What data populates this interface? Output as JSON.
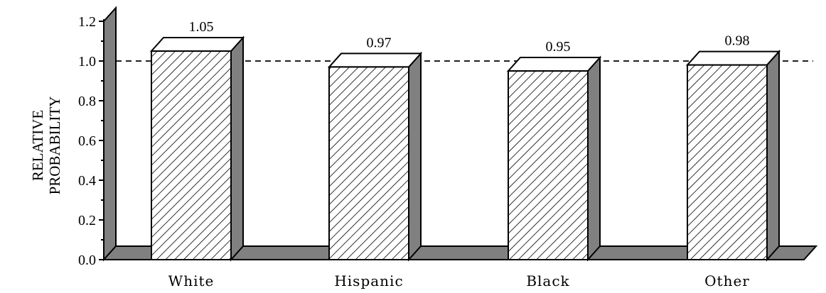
{
  "chart_data": {
    "type": "bar",
    "title": "",
    "xlabel": "",
    "ylabel": "RELATIVE PROBABILITY",
    "ylabel_lines": [
      "RELATIVE",
      "PROBABILITY"
    ],
    "categories": [
      "White",
      "Hispanic",
      "Black",
      "Other"
    ],
    "values": [
      1.05,
      0.97,
      0.95,
      0.98
    ],
    "data_labels": [
      "1.05",
      "0.97",
      "0.95",
      "0.98"
    ],
    "ylim": [
      0,
      1.2
    ],
    "yticks": [
      "0.0",
      "0.2",
      "0.4",
      "0.6",
      "0.8",
      "1.0",
      "1.2"
    ],
    "reference_line": 1.0,
    "grid": false,
    "style": "3d-hatched",
    "colors": {
      "bar_fill": "#ffffff",
      "hatch": "#000000",
      "side": "#808080",
      "floor": "#808080"
    }
  }
}
